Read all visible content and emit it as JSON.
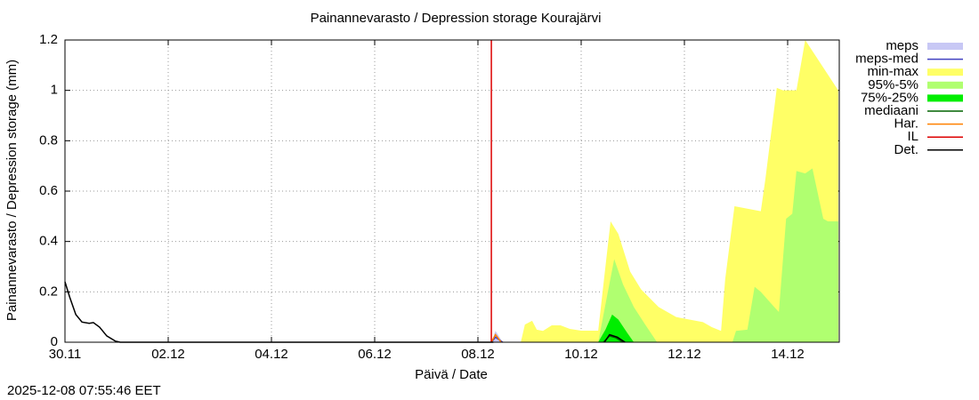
{
  "chart_data": {
    "type": "area",
    "title": "Painannevarasto / Depression storage    Kourajärvi",
    "xlabel": "Päivä / Date",
    "ylabel": "Painannevarasto / Depression storage (mm)",
    "timestamp": "2025-12-08 07:55:46 EET",
    "xlim": [
      0,
      15
    ],
    "ylim": [
      0,
      1.2
    ],
    "xticks": [
      {
        "value": 0,
        "label": "30.11"
      },
      {
        "value": 2,
        "label": "02.12"
      },
      {
        "value": 4,
        "label": "04.12"
      },
      {
        "value": 6,
        "label": "06.12"
      },
      {
        "value": 8,
        "label": "08.12"
      },
      {
        "value": 10,
        "label": "10.12"
      },
      {
        "value": 12,
        "label": "12.12"
      },
      {
        "value": 14,
        "label": "14.12"
      }
    ],
    "yticks": [
      0,
      0.2,
      0.4,
      0.6,
      0.8,
      1,
      1.2
    ],
    "grid": true,
    "legend": "right",
    "series": [
      {
        "name": "meps",
        "kind": "area",
        "color": "#c8c8f5",
        "x": [
          8.26,
          8.34,
          8.48
        ],
        "values": [
          0,
          0.045,
          0
        ]
      },
      {
        "name": "meps-med",
        "kind": "line",
        "color": "#4040c0",
        "x": [
          8.26,
          8.34,
          8.48
        ],
        "values": [
          0,
          0.02,
          0
        ]
      },
      {
        "name": "min-max",
        "kind": "area",
        "color": "#ffff66",
        "x": [
          8.83,
          8.91,
          9.05,
          9.14,
          9.26,
          9.43,
          9.6,
          9.78,
          10.0,
          10.33,
          10.47,
          10.57,
          10.72,
          10.95,
          11.16,
          11.5,
          11.84,
          12.36,
          12.53,
          12.71,
          12.79,
          12.97,
          13.48,
          13.57,
          13.79,
          13.91,
          14.17,
          14.34,
          14.98
        ],
        "values": [
          0,
          0.07,
          0.085,
          0.05,
          0.045,
          0.067,
          0.067,
          0.053,
          0.046,
          0.046,
          0.3,
          0.48,
          0.43,
          0.28,
          0.21,
          0.14,
          0.1,
          0.08,
          0.06,
          0.045,
          0.25,
          0.54,
          0.52,
          0.65,
          1.01,
          1.0,
          1.0,
          1.2,
          1.0
        ]
      },
      {
        "name": "95%-5%",
        "kind": "area",
        "color": "#b0ff70",
        "x": [
          10.33,
          10.47,
          10.64,
          10.81,
          11.02,
          11.24,
          11.47,
          12.93,
          13.0,
          13.22,
          13.36,
          13.48,
          13.74,
          13.83,
          13.97,
          14.09,
          14.17,
          14.34,
          14.48,
          14.69,
          14.78,
          14.98
        ],
        "values": [
          0,
          0.15,
          0.33,
          0.23,
          0.14,
          0.07,
          0,
          0,
          0.045,
          0.05,
          0.22,
          0.2,
          0.14,
          0.12,
          0.49,
          0.51,
          0.68,
          0.67,
          0.69,
          0.49,
          0.48,
          0.48
        ]
      },
      {
        "name": "75%-25%",
        "kind": "area",
        "color": "#00ee00",
        "x": [
          10.33,
          10.47,
          10.6,
          10.72,
          10.9,
          11.02
        ],
        "values": [
          0,
          0.05,
          0.11,
          0.09,
          0.035,
          0
        ]
      },
      {
        "name": "mediaani",
        "kind": "line",
        "color": "#006400",
        "x": [
          10.43,
          10.55,
          10.67,
          10.81
        ],
        "values": [
          0,
          0.025,
          0.018,
          0
        ]
      },
      {
        "name": "Har.",
        "kind": "line",
        "color": "#ff8000",
        "x": [
          8.26,
          8.34,
          8.45
        ],
        "values": [
          0,
          0.03,
          0
        ]
      },
      {
        "name": "IL",
        "kind": "line",
        "color": "#dd0000",
        "x": [
          8.26,
          8.26
        ],
        "values": [
          0,
          1.2
        ]
      },
      {
        "name": "Det.",
        "kind": "line",
        "color": "#000000",
        "x": [
          0,
          0.09,
          0.21,
          0.33,
          0.47,
          0.55,
          0.67,
          0.81,
          0.98,
          1.07,
          8.3,
          9.0,
          10.45,
          10.55,
          10.7,
          10.85
        ],
        "values": [
          0.24,
          0.18,
          0.11,
          0.08,
          0.075,
          0.078,
          0.06,
          0.025,
          0.004,
          0,
          0,
          null,
          0,
          0.03,
          0.02,
          0
        ]
      }
    ]
  }
}
